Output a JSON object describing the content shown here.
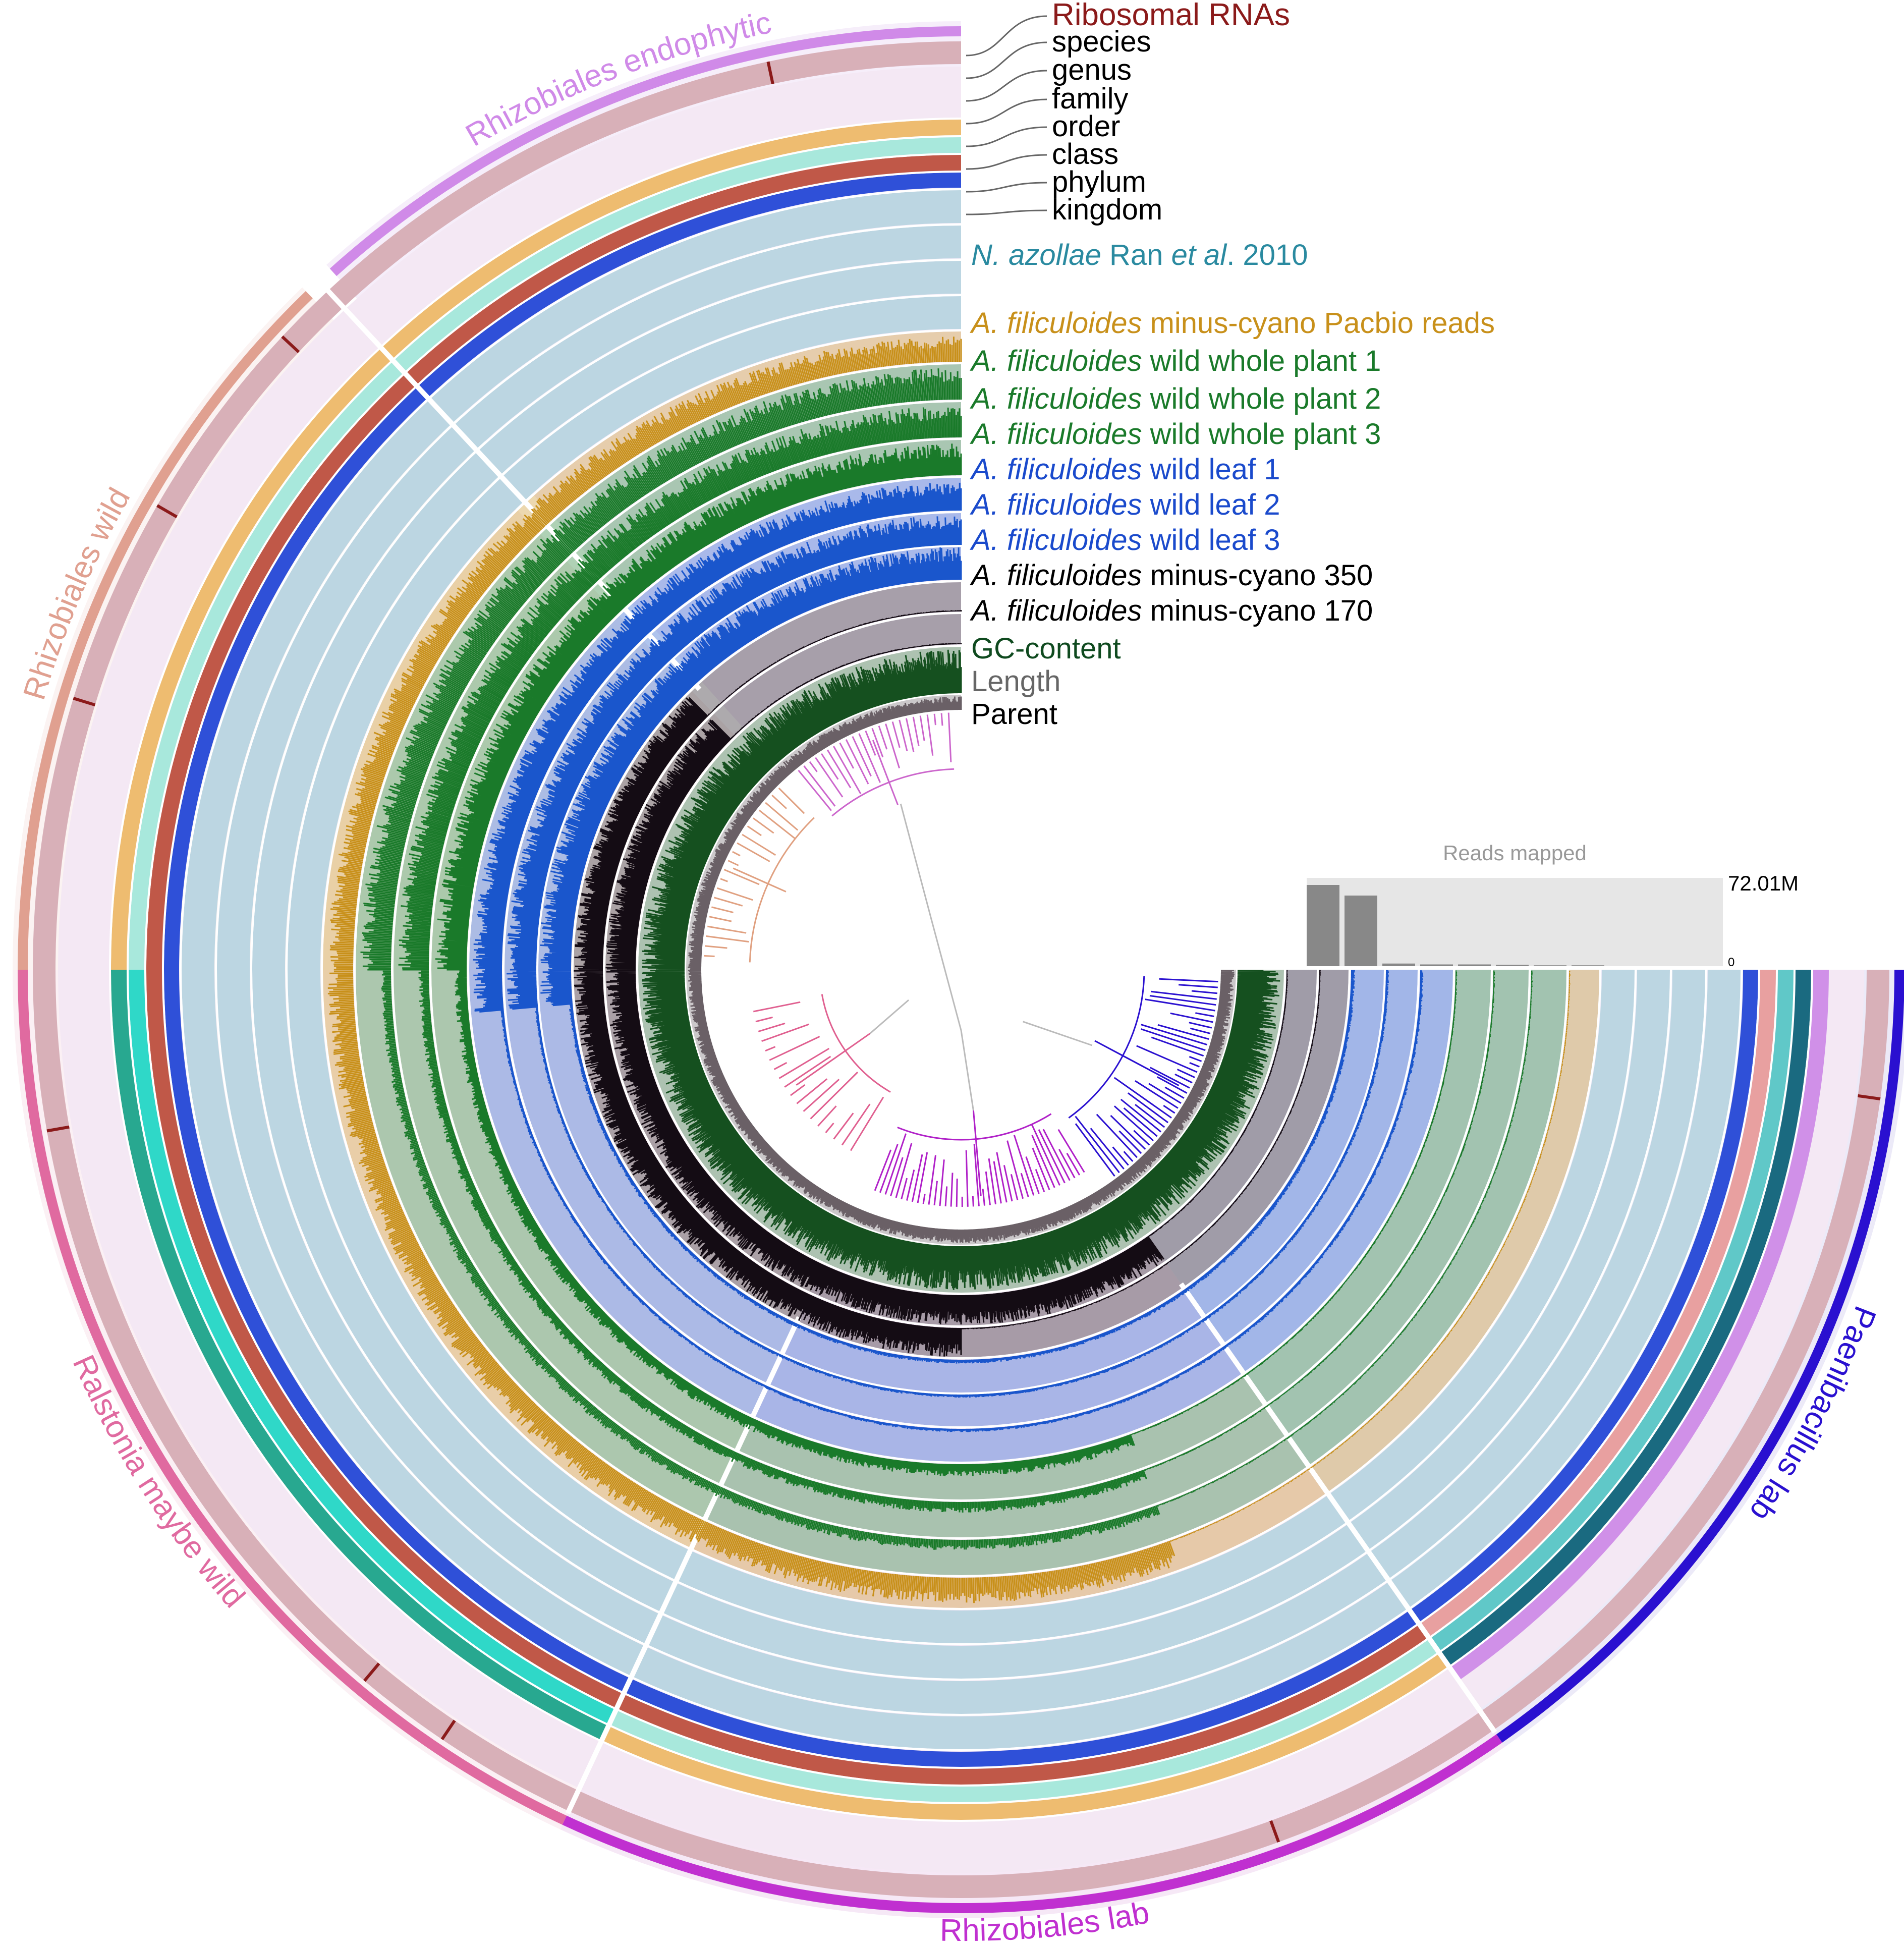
{
  "layer_legend": [
    {
      "key": "ribosomal",
      "italic_part": "",
      "text": "Ribosomal RNAs",
      "color": "#8b1a1a"
    },
    {
      "key": "species",
      "italic_part": "",
      "text": "species",
      "color": "#000000"
    },
    {
      "key": "genus",
      "italic_part": "",
      "text": "genus",
      "color": "#000000"
    },
    {
      "key": "family",
      "italic_part": "",
      "text": "family",
      "color": "#000000"
    },
    {
      "key": "order",
      "italic_part": "",
      "text": "order",
      "color": "#000000"
    },
    {
      "key": "class",
      "italic_part": "",
      "text": "class",
      "color": "#000000"
    },
    {
      "key": "phylum",
      "italic_part": "",
      "text": "phylum",
      "color": "#000000"
    },
    {
      "key": "kingdom",
      "italic_part": "",
      "text": "kingdom",
      "color": "#000000"
    },
    {
      "key": "nazollae",
      "italic_part": "N. azollae",
      "text": " Ran ",
      "italic_part2": "et al",
      "text2": ". 2010",
      "color": "#2a8aa0"
    },
    {
      "key": "pacbio",
      "italic_part": "A. filiculoides",
      "text": " minus-cyano Pacbio reads",
      "color": "#c8901a"
    },
    {
      "key": "wp1",
      "italic_part": "A. filiculoides",
      "text": " wild whole plant 1",
      "color": "#1a7a2a"
    },
    {
      "key": "wp2",
      "italic_part": "A. filiculoides",
      "text": " wild whole plant 2",
      "color": "#1a7a2a"
    },
    {
      "key": "wp3",
      "italic_part": "A. filiculoides",
      "text": " wild whole plant 3",
      "color": "#1a7a2a"
    },
    {
      "key": "leaf1",
      "italic_part": "A. filiculoides",
      "text": " wild leaf 1",
      "color": "#1a4acc"
    },
    {
      "key": "leaf2",
      "italic_part": "A. filiculoides",
      "text": " wild leaf 2",
      "color": "#1a4acc"
    },
    {
      "key": "leaf3",
      "italic_part": "A. filiculoides",
      "text": " wild leaf 3",
      "color": "#1a4acc"
    },
    {
      "key": "mc350",
      "italic_part": "A. filiculoides",
      "text": " minus-cyano 350",
      "color": "#000000"
    },
    {
      "key": "mc170",
      "italic_part": "A. filiculoides",
      "text": " minus-cyano 170",
      "color": "#000000"
    },
    {
      "key": "gc",
      "italic_part": "",
      "text": "GC-content",
      "color": "#0f4a1f"
    },
    {
      "key": "length",
      "italic_part": "",
      "text": "Length",
      "color": "#666666"
    },
    {
      "key": "parent",
      "italic_part": "",
      "text": "Parent",
      "color": "#000000"
    }
  ],
  "bins": [
    {
      "name": "Rhizobiales endophytic",
      "color": "#d08ae8",
      "start_deg": 0,
      "end_deg": 42
    },
    {
      "name": "Rhizobiales wild",
      "color": "#e0a090",
      "start_deg": 44,
      "end_deg": 90
    },
    {
      "name": "Ralstonia maybe wild",
      "color": "#e06aa0",
      "start_deg": 90,
      "end_deg": 155
    },
    {
      "name": "Rhizobiales lab",
      "color": "#c030d0",
      "start_deg": 155,
      "end_deg": 215
    },
    {
      "name": "Paenibacillus lab",
      "color": "#2a10d0",
      "start_deg": 215,
      "end_deg": 270
    }
  ],
  "reads_mapped": {
    "title": "Reads mapped",
    "max_label": "72.01M",
    "min_label": "0",
    "values": [
      0.92,
      0.8,
      0.03,
      0.02,
      0.02,
      0.015,
      0.01,
      0.01
    ],
    "colors": {
      "bar": "#888888",
      "background": "#e6e6e6"
    }
  },
  "colors": {
    "ring_light": "#bcd6e2",
    "pacbio": "#c8901a",
    "wild_whole": "#1a7a2a",
    "wild_leaf": "#1a56cc",
    "minus_cyano": "#140c14",
    "gc": "#15501f",
    "length": "#6a6066",
    "kingdom": "#2f50d8",
    "phylum": "#c05848",
    "class": "#a8e8dc",
    "order": "#eebc70",
    "family": "#f4e8f4",
    "species": "#d8b0b8",
    "ribosomal": "#8b1a1a"
  }
}
